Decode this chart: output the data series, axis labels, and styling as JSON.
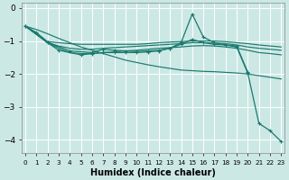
{
  "background_color": "#cce8e5",
  "grid_color": "#b8dbd8",
  "line_color": "#1a7a6e",
  "xlabel": "Humidex (Indice chaleur)",
  "xlim": [
    -0.3,
    23.3
  ],
  "ylim": [
    -4.4,
    0.15
  ],
  "yticks": [
    0,
    -1,
    -2,
    -3,
    -4
  ],
  "xticks": [
    0,
    1,
    2,
    3,
    4,
    5,
    6,
    7,
    8,
    9,
    10,
    11,
    12,
    13,
    14,
    15,
    16,
    17,
    18,
    19,
    20,
    21,
    22,
    23
  ],
  "series": [
    {
      "x": [
        0,
        1,
        2,
        3,
        4,
        5,
        6,
        7,
        8,
        9,
        10,
        11,
        12,
        13,
        14,
        15,
        16,
        17,
        18,
        19,
        20,
        21,
        22,
        23
      ],
      "y": [
        -0.55,
        -0.75,
        -1.02,
        -1.05,
        -1.08,
        -1.1,
        -1.1,
        -1.1,
        -1.1,
        -1.1,
        -1.1,
        -1.08,
        -1.05,
        -1.03,
        -1.02,
        -1.0,
        -1.0,
        -1.0,
        -1.02,
        -1.05,
        -1.08,
        -1.12,
        -1.15,
        -1.18
      ],
      "marker": false
    },
    {
      "x": [
        0,
        1,
        2,
        3,
        4,
        5,
        6,
        7,
        8,
        9,
        10,
        11,
        12,
        13,
        14,
        15,
        16,
        17,
        18,
        19,
        20,
        21,
        22,
        23
      ],
      "y": [
        -0.55,
        -0.78,
        -1.05,
        -1.15,
        -1.22,
        -1.25,
        -1.25,
        -1.22,
        -1.2,
        -1.18,
        -1.16,
        -1.14,
        -1.12,
        -1.1,
        -1.08,
        -1.05,
        -1.05,
        -1.06,
        -1.08,
        -1.12,
        -1.18,
        -1.22,
        -1.25,
        -1.28
      ],
      "marker": false
    },
    {
      "x": [
        0,
        1,
        2,
        3,
        4,
        5,
        6,
        7,
        8,
        9,
        10,
        11,
        12,
        13,
        14,
        15,
        16,
        17,
        18,
        19,
        20,
        21,
        22,
        23
      ],
      "y": [
        -0.55,
        -0.8,
        -1.05,
        -1.22,
        -1.35,
        -1.38,
        -1.38,
        -1.35,
        -1.33,
        -1.3,
        -1.28,
        -1.25,
        -1.22,
        -1.2,
        -1.18,
        -1.15,
        -1.14,
        -1.15,
        -1.18,
        -1.22,
        -1.28,
        -1.35,
        -1.38,
        -1.42
      ],
      "marker": false
    },
    {
      "x": [
        0,
        1,
        2,
        3,
        4,
        5,
        6,
        7,
        8,
        9,
        10,
        11,
        12,
        13,
        14,
        15,
        16,
        17,
        18,
        19,
        20,
        21,
        22,
        23
      ],
      "y": [
        -0.55,
        -0.65,
        -0.78,
        -0.92,
        -1.05,
        -1.18,
        -1.28,
        -1.38,
        -1.48,
        -1.58,
        -1.65,
        -1.72,
        -1.78,
        -1.83,
        -1.88,
        -1.9,
        -1.92,
        -1.93,
        -1.95,
        -1.97,
        -2.0,
        -2.05,
        -2.1,
        -2.15
      ],
      "marker": false
    },
    {
      "x": [
        0,
        2,
        4,
        6,
        7,
        8,
        9,
        10,
        11,
        12,
        13,
        14,
        15,
        16,
        17,
        18,
        19,
        20
      ],
      "y": [
        -0.55,
        -1.05,
        -1.3,
        -1.35,
        -1.25,
        -1.28,
        -1.3,
        -1.32,
        -1.3,
        -1.28,
        -1.22,
        -1.1,
        -0.95,
        -1.05,
        -1.1,
        -1.12,
        -1.15,
        -1.95
      ],
      "marker": true
    },
    {
      "x": [
        0,
        1,
        2,
        3,
        5,
        6,
        7,
        8,
        9,
        10,
        11,
        12,
        13,
        14,
        15,
        16,
        17,
        18,
        19,
        20,
        21,
        22,
        23
      ],
      "y": [
        -0.55,
        -0.75,
        -1.05,
        -1.28,
        -1.42,
        -1.38,
        -1.35,
        -1.35,
        -1.35,
        -1.35,
        -1.33,
        -1.3,
        -1.22,
        -1.05,
        -0.18,
        -0.88,
        -1.05,
        -1.12,
        -1.18,
        -1.98,
        -3.5,
        -3.72,
        -4.05
      ],
      "marker": true
    }
  ]
}
